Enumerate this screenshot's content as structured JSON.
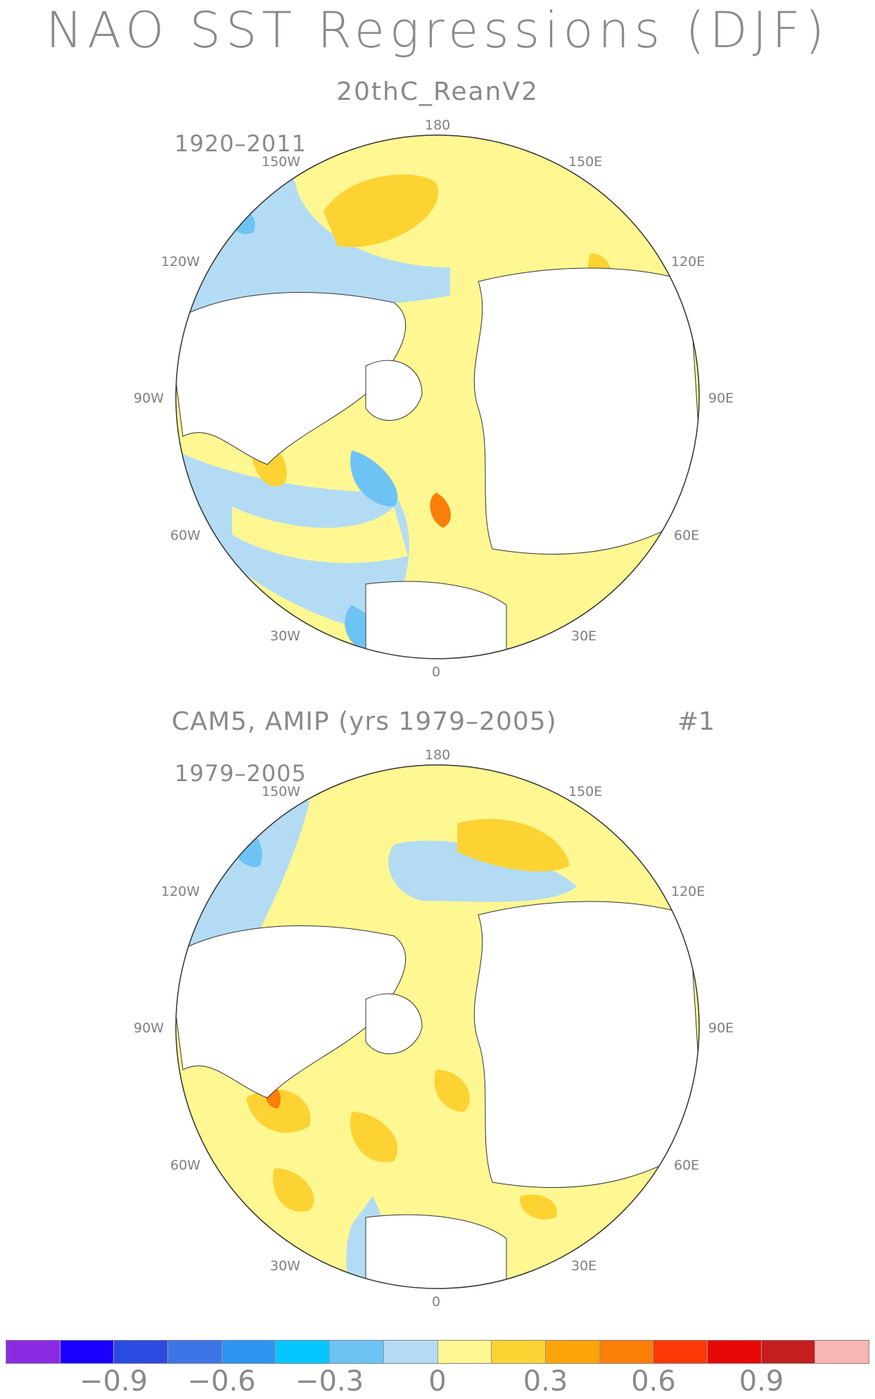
{
  "title": "NAO SST Regressions (DJF)",
  "panels": [
    {
      "subtitle": "20thC_ReanV2",
      "period": "1920–2011"
    },
    {
      "subtitle": "CAM5, AMIP (yrs 1979–2005)",
      "run": "#1",
      "period": "1979–2005"
    }
  ],
  "lon_labels": {
    "top": "180",
    "bottom": "0",
    "150W": "150W",
    "150E": "150E",
    "120W": "120W",
    "120E": "120E",
    "90W": "90W",
    "90E": "90E",
    "60W": "60W",
    "60E": "60E",
    "30W": "30W",
    "30E": "30E"
  },
  "colorbar": {
    "colors": [
      "#8a2be2",
      "#1a00ff",
      "#2b4be0",
      "#3d74e6",
      "#2c96f2",
      "#04c6ff",
      "#6ec3f5",
      "#b3dcf4",
      "#fef792",
      "#fcd332",
      "#fca50a",
      "#fb7e08",
      "#fb3907",
      "#e80808",
      "#c41e1e",
      "#f9b4b4"
    ],
    "labels": [
      "−0.9",
      "−0.6",
      "−0.3",
      "0",
      "0.3",
      "0.6",
      "0.9"
    ]
  },
  "legend_colors": {
    "land": "#ffffff",
    "coast": "#333333"
  }
}
